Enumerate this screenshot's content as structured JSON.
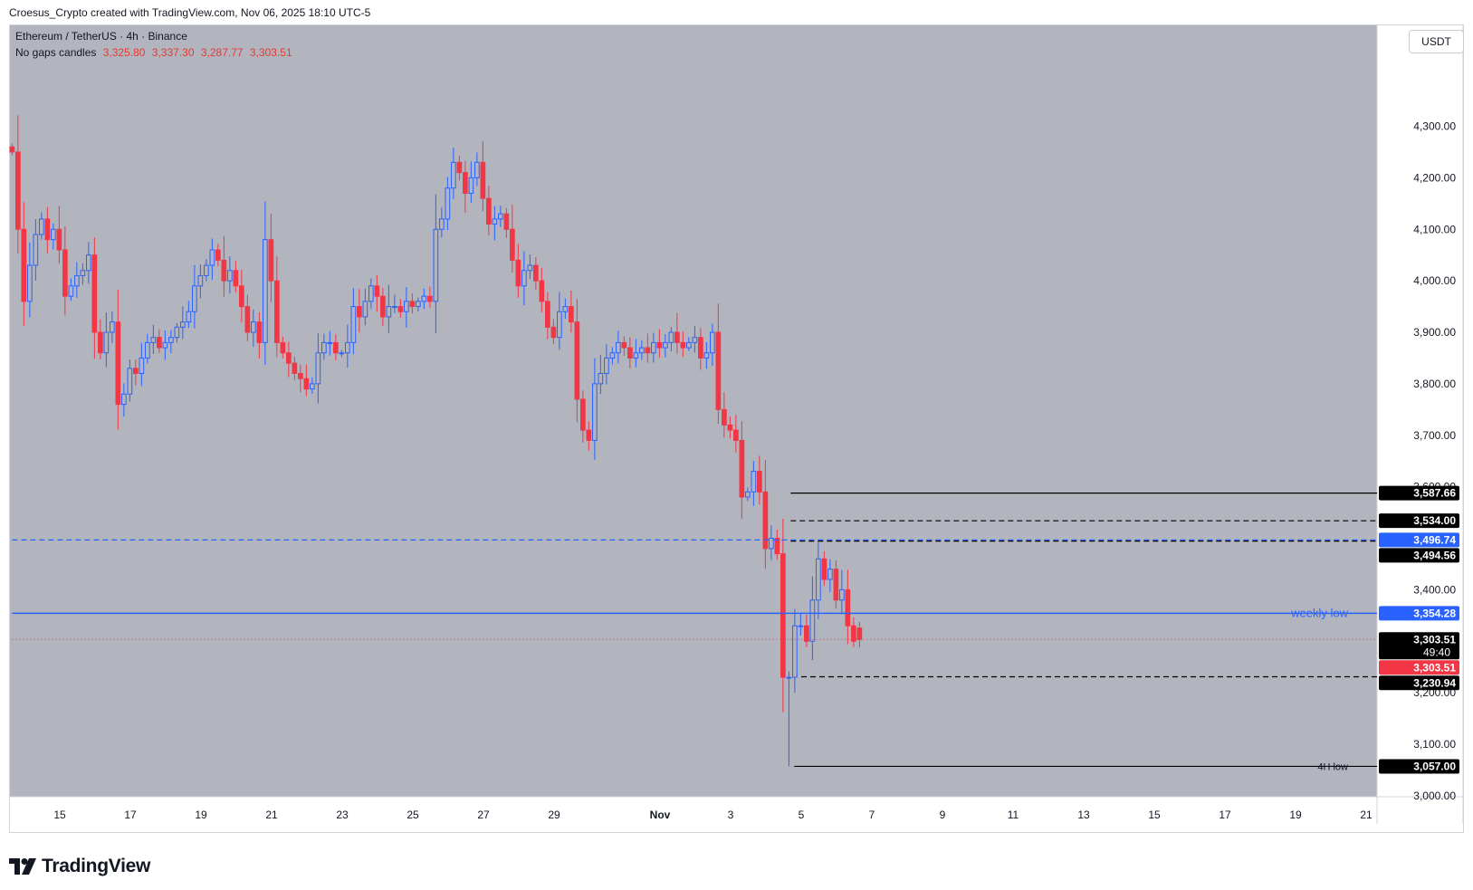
{
  "header": {
    "attribution": "Croesus_Crypto created with TradingView.com, Nov 06, 2025 18:10 UTC-5"
  },
  "legend": {
    "symbol_line": "Ethereum / TetherUS · 4h · Binance",
    "candles_label": "No gaps candles",
    "ohlc": [
      "3,325.80",
      "3,337.30",
      "3,287.77",
      "3,303.51"
    ]
  },
  "currency_button": "USDT",
  "footer": {
    "brand": "TradingView"
  },
  "colors": {
    "background": "#b2b5be",
    "up": "#2962ff",
    "down": "#f23645",
    "blue_line": "#2962ff",
    "label_black": "#000000",
    "label_blue": "#2962ff",
    "label_red": "#f23645"
  },
  "chart_data": {
    "type": "candlestick",
    "title": "",
    "y_ticks": [
      3000,
      3100,
      3200,
      3300,
      3400,
      3500,
      3600,
      3700,
      3800,
      3900,
      4000,
      4100,
      4200,
      4300
    ],
    "y_tick_labels": [
      "3,000.00",
      "3,100.00",
      "3,200.00",
      "3,300.00",
      "3,400.00",
      "3,500.00",
      "3,600.00",
      "3,700.00",
      "3,800.00",
      "3,900.00",
      "4,000.00",
      "4,100.00",
      "4,200.00",
      "4,300.00"
    ],
    "x_ticks": [
      {
        "label": "15",
        "day": 15
      },
      {
        "label": "17",
        "day": 17
      },
      {
        "label": "19",
        "day": 19
      },
      {
        "label": "21",
        "day": 21
      },
      {
        "label": "23",
        "day": 23
      },
      {
        "label": "25",
        "day": 25
      },
      {
        "label": "27",
        "day": 27
      },
      {
        "label": "29",
        "day": 29
      },
      {
        "label": "Nov",
        "day": 32,
        "bold": true
      },
      {
        "label": "3",
        "day": 34
      },
      {
        "label": "5",
        "day": 36
      },
      {
        "label": "7",
        "day": 38
      },
      {
        "label": "9",
        "day": 40
      },
      {
        "label": "11",
        "day": 42
      },
      {
        "label": "13",
        "day": 44
      },
      {
        "label": "15",
        "day": 46
      },
      {
        "label": "17",
        "day": 48
      },
      {
        "label": "19",
        "day": 50
      },
      {
        "label": "21",
        "day": 52
      }
    ],
    "x_start_day": 13.65,
    "candle_period_days": 0.16667,
    "closes": [
      4250,
      4100,
      3960,
      4030,
      4090,
      4120,
      4080,
      4100,
      4060,
      3970,
      3990,
      4010,
      4020,
      4050,
      3900,
      3860,
      3900,
      3920,
      3760,
      3780,
      3830,
      3820,
      3850,
      3880,
      3890,
      3870,
      3880,
      3890,
      3910,
      3920,
      3940,
      3990,
      4010,
      4030,
      4060,
      4040,
      4000,
      4020,
      3990,
      3950,
      3900,
      3920,
      3880,
      4080,
      4000,
      3880,
      3860,
      3840,
      3820,
      3810,
      3790,
      3800,
      3860,
      3880,
      3880,
      3860,
      3860,
      3880,
      3950,
      3930,
      3960,
      3990,
      3970,
      3930,
      3950,
      3950,
      3940,
      3960,
      3950,
      3960,
      3970,
      3960,
      4100,
      4120,
      4180,
      4230,
      4210,
      4170,
      4200,
      4230,
      4160,
      4110,
      4120,
      4130,
      4100,
      4040,
      3990,
      4020,
      4030,
      4000,
      3960,
      3910,
      3890,
      3940,
      3950,
      3920,
      3770,
      3710,
      3690,
      3800,
      3820,
      3850,
      3860,
      3880,
      3870,
      3850,
      3860,
      3870,
      3860,
      3880,
      3870,
      3880,
      3900,
      3880,
      3870,
      3880,
      3890,
      3850,
      3860,
      3900,
      3750,
      3720,
      3710,
      3690,
      3580,
      3590,
      3630,
      3590,
      3480,
      3500,
      3470,
      3230,
      3230,
      3330,
      3330,
      3300,
      3380,
      3460,
      3420,
      3440,
      3380,
      3400,
      3330,
      3300,
      3303.51
    ],
    "first_open": 4260,
    "last_candle": {
      "open": 3325.8,
      "high": 3337.3,
      "low": 3287.77,
      "close": 3303.51
    },
    "special_wicks": {
      "132": 3057,
      "133": 3200
    },
    "levels": [
      {
        "price": 3587.66,
        "label": "3,587.66",
        "style": "solid-black",
        "from_day": 35.7,
        "label_color": "#000000"
      },
      {
        "price": 3534.0,
        "label": "3,534.00",
        "style": "dashed-black",
        "from_day": 35.7,
        "label_color": "#000000"
      },
      {
        "price": 3496.74,
        "label": "3,496.74",
        "style": "dashed-blue",
        "from_day": 13.65,
        "label_color": "#2962ff"
      },
      {
        "price": 3494.56,
        "label": "3,494.56",
        "style": "dashed-black",
        "from_day": 35.7,
        "label_color": "#000000"
      },
      {
        "price": 3354.28,
        "label": "3,354.28",
        "style": "solid-blue",
        "from_day": 13.65,
        "label_color": "#2962ff",
        "text": "weekly low"
      },
      {
        "price": 3303.51,
        "label": "3,303.51",
        "style": "label-only",
        "label_color": "#000000",
        "sub": "49:40"
      },
      {
        "price": 3303.51,
        "label": "3,303.51",
        "style": "dotted-red",
        "from_day": 13.65,
        "label_color": "#f23645"
      },
      {
        "price": 3230.94,
        "label": "3,230.94",
        "style": "dashed-black",
        "from_day": 36.0,
        "label_color": "#000000"
      },
      {
        "price": 3057.0,
        "label": "3,057.00",
        "style": "solid-black",
        "from_day": 35.8,
        "label_color": "#000000",
        "text": "4H low"
      }
    ]
  }
}
